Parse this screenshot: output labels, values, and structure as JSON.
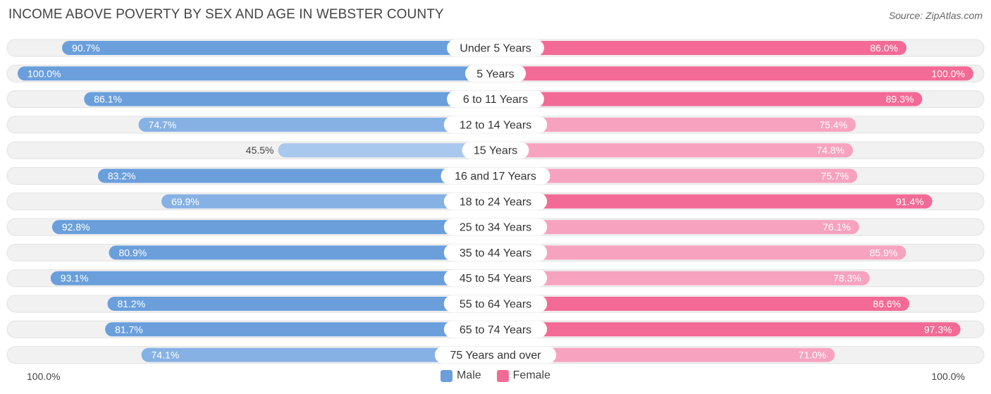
{
  "header": {
    "title": "INCOME ABOVE POVERTY BY SEX AND AGE IN WEBSTER COUNTY",
    "source": "Source: ZipAtlas.com"
  },
  "footer": {
    "left_label": "100.0%",
    "right_label": "100.0%"
  },
  "legend": {
    "male_label": "Male",
    "female_label": "Female"
  },
  "colors": {
    "male_strong": "#6a9fdc",
    "male_light": "#a9c8ee",
    "female_strong": "#f36a96",
    "female_light": "#f7a3bf",
    "track": "#f1f1f1"
  },
  "chart_data": {
    "type": "bar",
    "orientation": "horizontal-diverging",
    "title": "INCOME ABOVE POVERTY BY SEX AND AGE IN WEBSTER COUNTY",
    "xlim": [
      0,
      100
    ],
    "categories": [
      "Under 5 Years",
      "5 Years",
      "6 to 11 Years",
      "12 to 14 Years",
      "15 Years",
      "16 and 17 Years",
      "18 to 24 Years",
      "25 to 34 Years",
      "35 to 44 Years",
      "45 to 54 Years",
      "55 to 64 Years",
      "65 to 74 Years",
      "75 Years and over"
    ],
    "series": [
      {
        "name": "Male",
        "values": [
          90.7,
          100.0,
          86.1,
          74.7,
          45.5,
          83.2,
          69.9,
          92.8,
          80.9,
          93.1,
          81.2,
          81.7,
          74.1
        ]
      },
      {
        "name": "Female",
        "values": [
          86.0,
          100.0,
          89.3,
          75.4,
          74.8,
          75.7,
          91.4,
          76.1,
          85.9,
          78.3,
          86.6,
          97.3,
          71.0
        ]
      }
    ],
    "value_labels": {
      "male": [
        "90.7%",
        "100.0%",
        "86.1%",
        "74.7%",
        "45.5%",
        "83.2%",
        "69.9%",
        "92.8%",
        "80.9%",
        "93.1%",
        "81.2%",
        "81.7%",
        "74.1%"
      ],
      "female": [
        "86.0%",
        "100.0%",
        "89.3%",
        "75.4%",
        "74.8%",
        "75.7%",
        "91.4%",
        "76.1%",
        "85.9%",
        "78.3%",
        "86.6%",
        "97.3%",
        "71.0%"
      ]
    },
    "legend_position": "bottom-center"
  }
}
